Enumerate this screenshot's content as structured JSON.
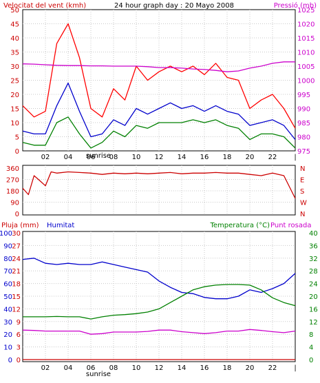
{
  "chart_data": [
    {
      "type": "line",
      "title": "24 hour graph day : 20 Mayo 2008",
      "left_label": "Velocitat del vent (kmh)",
      "right_label": "Pressió (mb)",
      "x_tick_labels": [
        "02",
        "04",
        "06",
        "08",
        "10",
        "12",
        "14",
        "16",
        "18",
        "20",
        "22",
        "|"
      ],
      "sunrise_label": "sunrise",
      "ylim_left": [
        0,
        50
      ],
      "y_ticks_left": [
        "0",
        "5",
        "10",
        "15",
        "20",
        "25",
        "30",
        "35",
        "40",
        "45",
        "50"
      ],
      "ylim_right": [
        975,
        1025
      ],
      "y_ticks_right": [
        "975",
        "980",
        "985",
        "990",
        "995",
        "1000",
        "1005",
        "1010",
        "1015",
        "1020",
        "1025"
      ],
      "grid": true,
      "hours": [
        0,
        1,
        2,
        3,
        4,
        5,
        6,
        7,
        8,
        9,
        10,
        11,
        12,
        13,
        14,
        15,
        16,
        17,
        18,
        19,
        20,
        21,
        22,
        23,
        24
      ],
      "series": [
        {
          "color": "#ff0000",
          "values": [
            16,
            12,
            14,
            38,
            45,
            33,
            15,
            12,
            22,
            18,
            30,
            25,
            28,
            30,
            28,
            30,
            27,
            31,
            26,
            25,
            15,
            18,
            20,
            15,
            8
          ]
        },
        {
          "color": "#0000cc",
          "values": [
            7,
            6,
            6,
            16,
            24,
            14,
            5,
            6,
            11,
            9,
            15,
            13,
            15,
            17,
            15,
            16,
            14,
            16,
            14,
            13,
            9,
            10,
            11,
            9,
            4
          ]
        },
        {
          "color": "#008000",
          "values": [
            3,
            2,
            2,
            10,
            12,
            6,
            1,
            3,
            7,
            5,
            9,
            8,
            10,
            10,
            10,
            11,
            10,
            11,
            9,
            8,
            4,
            6,
            6,
            5,
            1
          ]
        },
        {
          "color": "#cc00cc",
          "axis": "right",
          "values": [
            1005.8,
            1005.7,
            1005.5,
            1005.3,
            1005.2,
            1005.2,
            1005.1,
            1005.1,
            1005.0,
            1005.0,
            1005.0,
            1004.8,
            1004.5,
            1004.5,
            1004.3,
            1004.0,
            1003.8,
            1003.5,
            1003.0,
            1003.3,
            1004.3,
            1005.0,
            1006.0,
            1006.5,
            1006.5
          ]
        }
      ]
    },
    {
      "type": "line",
      "left_ticks": [
        "0",
        "90",
        "180",
        "270",
        "360"
      ],
      "ylim_left": [
        0,
        360
      ],
      "right_labels": [
        "N",
        "W",
        "S",
        "E",
        "N"
      ],
      "grid": true,
      "series": [
        {
          "color": "#cc0000",
          "hours": [
            0,
            0.5,
            1,
            1.5,
            2,
            2.5,
            3,
            4,
            5,
            6,
            7,
            8,
            9,
            10,
            11,
            12,
            13,
            14,
            15,
            16,
            17,
            18,
            19,
            20,
            21,
            22,
            23,
            24
          ],
          "values": [
            200,
            150,
            300,
            260,
            220,
            330,
            320,
            330,
            325,
            320,
            310,
            320,
            315,
            320,
            315,
            320,
            325,
            315,
            320,
            320,
            325,
            320,
            320,
            310,
            300,
            320,
            300,
            120
          ]
        }
      ]
    },
    {
      "type": "line",
      "left_label": "Pluja (mm)",
      "humidity_label": "Humitat",
      "right_label": "Temperatura (°C)",
      "dewpoint_label": "Punt rosada",
      "x_tick_labels": [
        "02",
        "04",
        "06",
        "08",
        "10",
        "12",
        "14",
        "16",
        "18",
        "20",
        "22",
        "|"
      ],
      "sunrise_label": "sunrise",
      "ylim_left_humidity": [
        0,
        100
      ],
      "y_ticks_humidity": [
        "0",
        "10",
        "20",
        "30",
        "40",
        "50",
        "60",
        "70",
        "80",
        "90",
        "100"
      ],
      "ylim_left_rain": [
        0,
        30
      ],
      "y_ticks_rain": [
        "0",
        "3",
        "6",
        "9",
        "12",
        "15",
        "18",
        "21",
        "24",
        "27",
        "30"
      ],
      "ylim_right": [
        0,
        40
      ],
      "y_ticks_right": [
        "0",
        "4",
        "8",
        "12",
        "16",
        "20",
        "24",
        "28",
        "32",
        "36",
        "40"
      ],
      "grid": true,
      "hours": [
        0,
        1,
        2,
        3,
        4,
        5,
        6,
        7,
        8,
        9,
        10,
        11,
        12,
        13,
        14,
        15,
        16,
        17,
        18,
        19,
        20,
        21,
        22,
        23,
        24
      ],
      "series": [
        {
          "color": "#0000cc",
          "values": [
            79,
            80,
            76,
            75,
            76,
            75,
            75,
            77,
            75,
            73,
            71,
            69,
            62,
            57,
            53,
            52,
            49,
            48,
            48,
            50,
            55,
            53,
            56,
            60,
            68
          ]
        },
        {
          "color": "#008000",
          "axis": "right",
          "values": [
            13.5,
            13.5,
            13.5,
            13.6,
            13.5,
            13.5,
            12.8,
            13.5,
            14,
            14.2,
            14.5,
            15,
            16,
            18,
            20,
            22,
            23,
            23.5,
            23.7,
            23.7,
            23.5,
            22,
            19.5,
            18,
            17
          ]
        },
        {
          "color": "#cc00cc",
          "axis": "right",
          "values": [
            9.3,
            9.2,
            9.0,
            9.0,
            9.0,
            9.0,
            8.0,
            8.2,
            8.7,
            8.7,
            8.7,
            8.9,
            9.3,
            9.3,
            8.8,
            8.5,
            8.2,
            8.5,
            9.0,
            9.0,
            9.5,
            9.2,
            8.8,
            8.5,
            9.0
          ]
        },
        {
          "color": "#cc0000",
          "axis": "rain",
          "values": [
            0,
            0,
            0,
            0,
            0,
            0,
            0,
            0,
            0,
            0,
            0,
            0,
            0,
            0,
            0,
            0,
            0,
            0,
            0,
            0,
            0,
            0,
            0,
            0,
            0
          ]
        }
      ]
    }
  ]
}
